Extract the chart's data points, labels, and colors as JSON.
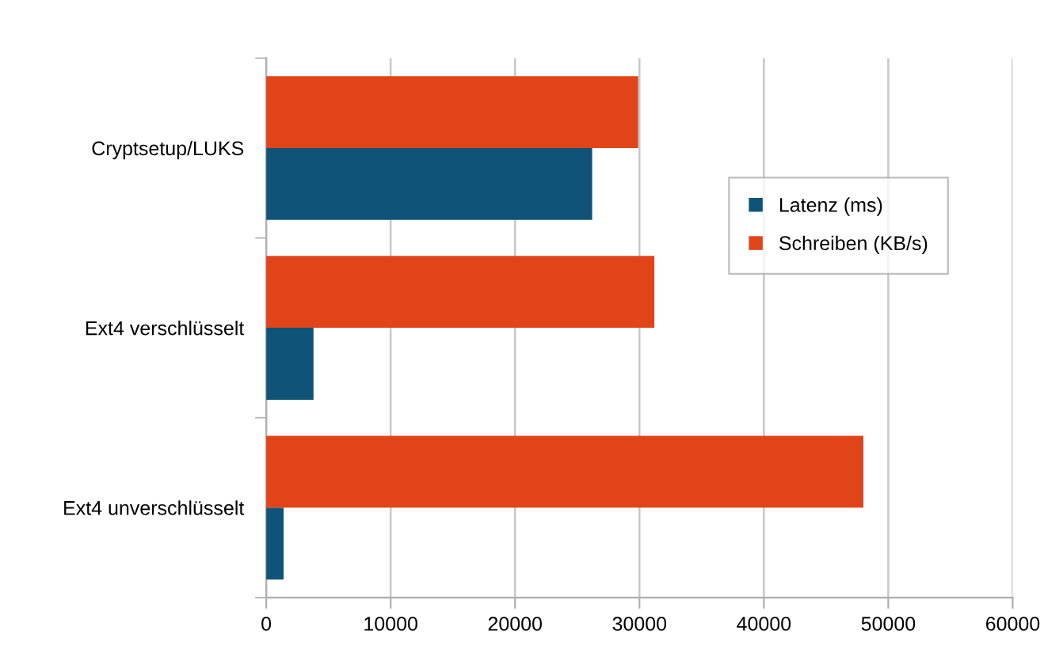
{
  "chart_data": {
    "type": "bar",
    "orientation": "horizontal",
    "categories": [
      "Cryptsetup/LUKS",
      "Ext4 verschlüsselt",
      "Ext4 unverschlüsselt"
    ],
    "series": [
      {
        "name": "Latenz (ms)",
        "color": "#0f5478",
        "values": [
          26200,
          3800,
          1400
        ]
      },
      {
        "name": "Schreiben (KB/s)",
        "color": "#e2441a",
        "values": [
          29900,
          31200,
          48000
        ]
      }
    ],
    "xlim": [
      0,
      60000
    ],
    "xticks": [
      0,
      10000,
      20000,
      30000,
      40000,
      50000,
      60000
    ],
    "grid": "x",
    "legend": "top right"
  }
}
